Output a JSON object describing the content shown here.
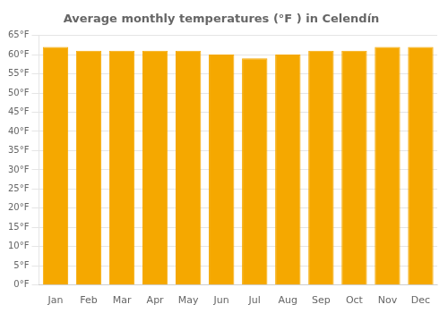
{
  "chart_data": {
    "type": "bar",
    "title": "Average monthly temperatures (°F ) in Celendín",
    "categories": [
      "Jan",
      "Feb",
      "Mar",
      "Apr",
      "May",
      "Jun",
      "Jul",
      "Aug",
      "Sep",
      "Oct",
      "Nov",
      "Dec"
    ],
    "values": [
      62,
      61,
      61,
      61,
      61,
      60,
      59,
      60,
      61,
      61,
      62,
      62
    ],
    "color": "#F5A800",
    "ylim": [
      0,
      65
    ],
    "yticks": [
      {
        "value": 0,
        "label": "0°F"
      },
      {
        "value": 5,
        "label": "5°F"
      },
      {
        "value": 10,
        "label": "10°F"
      },
      {
        "value": 15,
        "label": "15°F"
      },
      {
        "value": 20,
        "label": "20°F"
      },
      {
        "value": 25,
        "label": "25°F"
      },
      {
        "value": 30,
        "label": "30°F"
      },
      {
        "value": 35,
        "label": "35°F"
      },
      {
        "value": 40,
        "label": "40°F"
      },
      {
        "value": 45,
        "label": "45°F"
      },
      {
        "value": 50,
        "label": "50°F"
      },
      {
        "value": 55,
        "label": "55°F"
      },
      {
        "value": 60,
        "label": "60°F"
      },
      {
        "value": 65,
        "label": "65°F"
      }
    ],
    "grid": true
  }
}
